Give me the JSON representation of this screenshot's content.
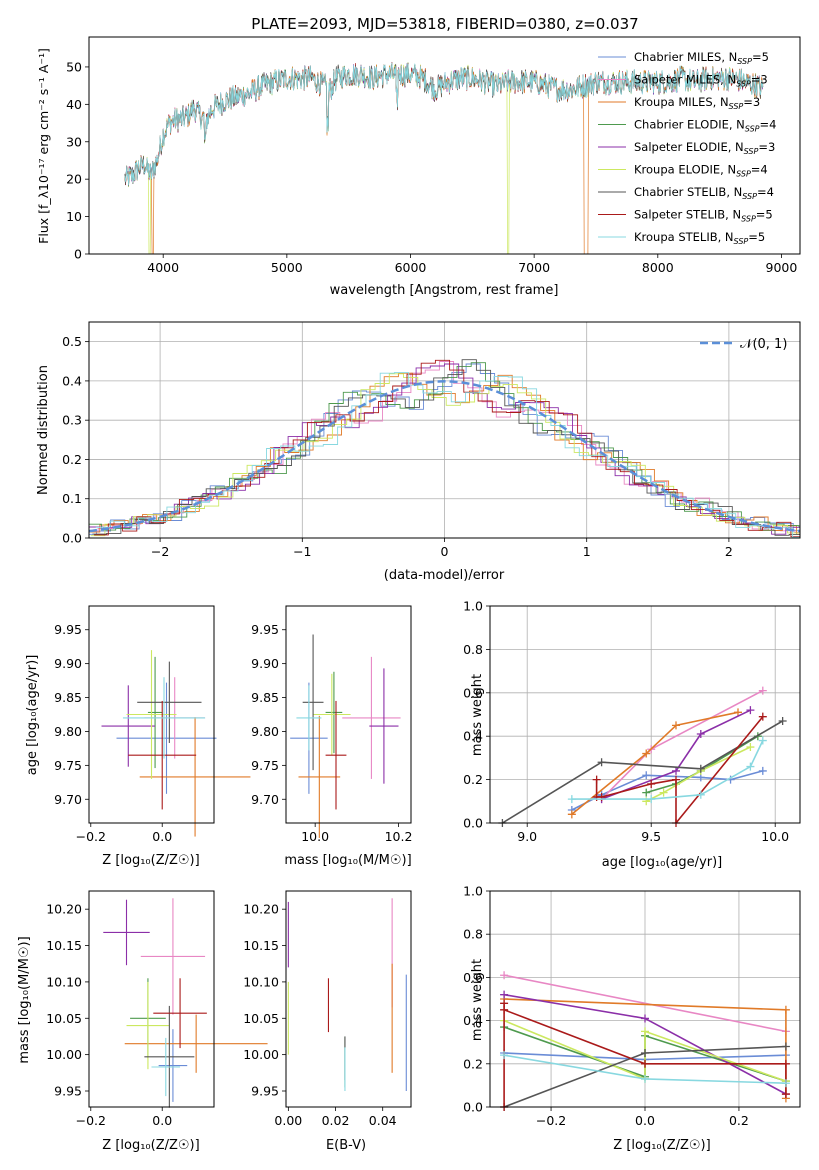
{
  "title": "PLATE=2093, MJD=53818, FIBERID=0380, z=0.037",
  "colors": [
    "#6a8cd6",
    "#e887c4",
    "#e07a28",
    "#4e9a4e",
    "#8b2fa8",
    "#cce860",
    "#555555",
    "#aa1a1a",
    "#88d8e0"
  ],
  "chart_data": [
    {
      "id": "spectrum",
      "type": "line",
      "xlabel": "wavelength [Angstrom, rest frame]",
      "ylabel": "Flux [f_λ10⁻¹⁷ erg cm⁻² s⁻¹ A⁻¹]",
      "xlim": [
        3400,
        9150
      ],
      "ylim": [
        0,
        58
      ],
      "xticks": [
        4000,
        5000,
        6000,
        7000,
        8000,
        9000
      ],
      "yticks": [
        0,
        10,
        20,
        30,
        40,
        50
      ],
      "legend_position": "top-right",
      "legend": [
        "Chabrier MILES, N_SSP=5",
        "Salpeter MILES, N_SSP=3",
        "Kroupa MILES, N_SSP=3",
        "Chabrier ELODIE, N_SSP=4",
        "Salpeter ELODIE, N_SSP=3",
        "Kroupa ELODIE, N_SSP=4",
        "Chabrier STELIB, N_SSP=4",
        "Salpeter STELIB, N_SSP=5",
        "Kroupa STELIB, N_SSP=5"
      ],
      "envelope": {
        "x": [
          3690,
          3750,
          3800,
          3850,
          3900,
          3950,
          4000,
          4050,
          4100,
          4150,
          4200,
          4250,
          4300,
          4350,
          4400,
          4500,
          4600,
          4700,
          4800,
          4900,
          5000,
          5100,
          5200,
          5300,
          5350,
          5400,
          5500,
          5600,
          5700,
          5800,
          5900,
          6000,
          6100,
          6200,
          6300,
          6400,
          6500,
          6600,
          6700,
          6800,
          6900,
          7000,
          7100,
          7200,
          7300,
          7400,
          7500,
          7600,
          7700,
          7800,
          7900,
          8000,
          8100,
          8200,
          8300,
          8400,
          8500,
          8600,
          8700,
          8800,
          8850
        ],
        "y": [
          20,
          21,
          23,
          24,
          21,
          25,
          32,
          35,
          36,
          36,
          37,
          39,
          37,
          36,
          39,
          41,
          42,
          43,
          45,
          46,
          47,
          47,
          47,
          45,
          44,
          47,
          48,
          48,
          47,
          48,
          48,
          48,
          47,
          44,
          46,
          47,
          47,
          46,
          45,
          46,
          46,
          46,
          45,
          44,
          44,
          45,
          46,
          46,
          46,
          46,
          46,
          46,
          46,
          47,
          46,
          47,
          47,
          47,
          46,
          45,
          44
        ]
      },
      "drops": [
        {
          "series": "Kroupa ELODIE, N_SSP=4",
          "x": 3890
        },
        {
          "series": "Kroupa MILES, N_SSP=3",
          "x": 3915
        },
        {
          "series": "Kroupa ELODIE, N_SSP=4",
          "x": 6790
        },
        {
          "series": "Kroupa MILES, N_SSP=3",
          "x": 7410
        }
      ]
    },
    {
      "id": "residuals",
      "type": "line",
      "xlabel": "(data-model)/error",
      "ylabel": "Normed distribution",
      "xlim": [
        -2.5,
        2.5
      ],
      "ylim": [
        0,
        0.55
      ],
      "xticks": [
        -2,
        -1,
        0,
        1,
        2
      ],
      "yticks": [
        0.0,
        0.1,
        0.2,
        0.3,
        0.4,
        0.5
      ],
      "grid": true,
      "legend_position": "top-right",
      "reference_label": "𝒩(0, 1)",
      "bin_width": 0.1
    },
    {
      "id": "age-vs-Z",
      "type": "scatter",
      "xlabel": "Z [log₁₀(Z/Z☉)]",
      "ylabel": "age  [log₁₀(age/yr)]",
      "xlim": [
        -0.205,
        0.145
      ],
      "ylim": [
        9.665,
        9.985
      ],
      "xticks": [
        -0.2,
        0.0
      ],
      "xticklabels": [
        "−0.2",
        "0.0"
      ],
      "yticks": [
        9.7,
        9.75,
        9.8,
        9.85,
        9.9,
        9.95
      ],
      "points": [
        {
          "x": 0.012,
          "y": 9.79,
          "xerr": 0.14,
          "yerr": 0.082
        },
        {
          "x": 0.035,
          "y": 9.82,
          "xerr": 0.085,
          "yerr": 0.06
        },
        {
          "x": 0.092,
          "y": 9.733,
          "xerr": 0.155,
          "yerr": 0.088
        },
        {
          "x": -0.02,
          "y": 9.828,
          "xerr": 0.02,
          "yerr": 0.082
        },
        {
          "x": -0.095,
          "y": 9.808,
          "xerr": 0.075,
          "yerr": 0.06
        },
        {
          "x": -0.03,
          "y": 9.825,
          "xerr": 0.07,
          "yerr": 0.095
        },
        {
          "x": 0.02,
          "y": 9.843,
          "xerr": 0.09,
          "yerr": 0.06
        },
        {
          "x": 0.0,
          "y": 9.765,
          "xerr": 0.095,
          "yerr": 0.08
        },
        {
          "x": 0.005,
          "y": 9.82,
          "xerr": 0.115,
          "yerr": 0.06
        }
      ]
    },
    {
      "id": "age-vs-mass",
      "type": "scatter",
      "xlabel": "mass [log₁₀(M/M☉)]",
      "xlim": [
        9.93,
        10.23
      ],
      "ylim": [
        9.665,
        9.985
      ],
      "xticks": [
        10.0,
        10.2
      ],
      "xticklabels": [
        "10.0",
        "10.2"
      ],
      "yticks": [
        9.7,
        9.75,
        9.8,
        9.85,
        9.9,
        9.95
      ],
      "points": [
        {
          "x": 9.985,
          "y": 9.79,
          "xerr": 0.045,
          "yerr": 0.082
        },
        {
          "x": 10.135,
          "y": 9.82,
          "xerr": 0.07,
          "yerr": 0.09
        },
        {
          "x": 10.01,
          "y": 9.733,
          "xerr": 0.05,
          "yerr": 0.09
        },
        {
          "x": 10.045,
          "y": 9.828,
          "xerr": 0.02,
          "yerr": 0.06
        },
        {
          "x": 10.165,
          "y": 9.808,
          "xerr": 0.035,
          "yerr": 0.085
        },
        {
          "x": 10.04,
          "y": 9.825,
          "xerr": 0.045,
          "yerr": 0.06
        },
        {
          "x": 9.995,
          "y": 9.843,
          "xerr": 0.025,
          "yerr": 0.1
        },
        {
          "x": 10.05,
          "y": 9.765,
          "xerr": 0.025,
          "yerr": 0.08
        },
        {
          "x": 9.985,
          "y": 9.82,
          "xerr": 0.03,
          "yerr": 0.048
        }
      ]
    },
    {
      "id": "weight-vs-age",
      "type": "line",
      "xlabel": "age  [log₁₀(age/yr)]",
      "ylabel": "mass weight",
      "xlim": [
        8.85,
        10.1
      ],
      "ylim": [
        0,
        1
      ],
      "xticks": [
        9.0,
        9.5,
        10.0
      ],
      "xticklabels": [
        "9.0",
        "9.5",
        "10.0"
      ],
      "yticks": [
        0.0,
        0.2,
        0.4,
        0.6,
        0.8,
        1.0
      ],
      "yticklabels": [
        "0.0",
        "0.2",
        "0.4",
        "0.6",
        "0.8",
        "1.0"
      ],
      "grid": true,
      "series": [
        {
          "x": [
            9.18,
            9.3,
            9.48,
            9.7,
            9.82,
            9.95
          ],
          "y": [
            0.06,
            0.13,
            0.22,
            0.21,
            0.2,
            0.24
          ]
        },
        {
          "x": [
            9.3,
            9.5,
            9.95
          ],
          "y": [
            0.11,
            0.34,
            0.61
          ]
        },
        {
          "x": [
            9.18,
            9.48,
            9.6,
            9.85
          ],
          "y": [
            0.04,
            0.32,
            0.45,
            0.51
          ]
        },
        {
          "x": [
            9.48,
            9.6,
            9.7,
            9.93
          ],
          "y": [
            0.14,
            0.18,
            0.24,
            0.4
          ]
        },
        {
          "x": [
            9.3,
            9.6,
            9.7,
            9.9
          ],
          "y": [
            0.11,
            0.24,
            0.41,
            0.52
          ]
        },
        {
          "x": [
            9.48,
            9.55,
            9.7,
            9.9
          ],
          "y": [
            0.1,
            0.14,
            0.24,
            0.35
          ]
        },
        {
          "x": [
            8.9,
            9.3,
            9.7,
            10.03
          ],
          "y": [
            0.0,
            0.28,
            0.25,
            0.47
          ]
        },
        {
          "x": [
            9.28,
            9.28,
            9.3,
            9.5,
            9.6,
            9.6,
            9.95
          ],
          "y": [
            0.2,
            0.12,
            0.12,
            0.18,
            0.2,
            0.0,
            0.49
          ]
        },
        {
          "x": [
            9.18,
            9.5,
            9.7,
            9.9,
            9.95
          ],
          "y": [
            0.11,
            0.11,
            0.13,
            0.26,
            0.38
          ]
        }
      ]
    },
    {
      "id": "mass-vs-Z",
      "type": "scatter",
      "xlabel": "Z [log₁₀(Z/Z☉)]",
      "ylabel": "mass [log₁₀(M/M☉)]",
      "xlim": [
        -0.205,
        0.145
      ],
      "ylim": [
        9.928,
        10.225
      ],
      "xticks": [
        -0.2,
        0.0
      ],
      "xticklabels": [
        "−0.2",
        "0.0"
      ],
      "yticks": [
        9.95,
        10.0,
        10.05,
        10.1,
        10.15,
        10.2
      ],
      "points": [
        {
          "x": 0.03,
          "y": 9.985,
          "xerr": 0.04,
          "yerr": 0.05
        },
        {
          "x": 0.03,
          "y": 10.135,
          "xerr": 0.09,
          "yerr": 0.08
        },
        {
          "x": 0.095,
          "y": 10.015,
          "xerr": 0.2,
          "yerr": 0.04
        },
        {
          "x": -0.04,
          "y": 10.05,
          "xerr": 0.05,
          "yerr": 0.055
        },
        {
          "x": -0.1,
          "y": 10.168,
          "xerr": 0.065,
          "yerr": 0.045
        },
        {
          "x": -0.04,
          "y": 10.04,
          "xerr": 0.06,
          "yerr": 0.06
        },
        {
          "x": 0.02,
          "y": 9.997,
          "xerr": 0.07,
          "yerr": 0.07
        },
        {
          "x": 0.05,
          "y": 10.057,
          "xerr": 0.075,
          "yerr": 0.048
        },
        {
          "x": 0.01,
          "y": 9.983,
          "xerr": 0.04,
          "yerr": 0.04
        }
      ]
    },
    {
      "id": "mass-vs-EBV",
      "type": "scatter",
      "xlabel": "E(B-V)",
      "xlim": [
        -0.001,
        0.052
      ],
      "ylim": [
        9.928,
        10.225
      ],
      "xticks": [
        0.0,
        0.02,
        0.04
      ],
      "xticklabels": [
        "0.00",
        "0.02",
        "0.04"
      ],
      "yticks": [
        9.95,
        10.0,
        10.05,
        10.1,
        10.15,
        10.2
      ],
      "points": [
        {
          "x": 0.05,
          "y": 10.03,
          "xerr": 0,
          "yerr": 0.08
        },
        {
          "x": 0.044,
          "y": 10.14,
          "xerr": 0,
          "yerr": 0.075
        },
        {
          "x": 0.044,
          "y": 10.05,
          "xerr": 0,
          "yerr": 0.075
        },
        {
          "x": 0.024,
          "y": 9.99,
          "xerr": 0,
          "yerr": 0.035
        },
        {
          "x": 0.0,
          "y": 10.165,
          "xerr": 0,
          "yerr": 0.045
        },
        {
          "x": 0.0,
          "y": 10.05,
          "xerr": 0,
          "yerr": 0.05
        },
        {
          "x": 0.024,
          "y": 9.995,
          "xerr": 0,
          "yerr": 0.03
        },
        {
          "x": 0.017,
          "y": 10.068,
          "xerr": 0,
          "yerr": 0.037
        },
        {
          "x": 0.024,
          "y": 9.98,
          "xerr": 0,
          "yerr": 0.03
        }
      ]
    },
    {
      "id": "weight-vs-Z",
      "type": "line",
      "xlabel": "Z [log₁₀(Z/Z☉)]",
      "ylabel": "mass weight",
      "xlim": [
        -0.33,
        0.33
      ],
      "ylim": [
        0,
        1
      ],
      "xticks": [
        -0.2,
        0.0,
        0.2
      ],
      "xticklabels": [
        "−0.2",
        "0.0",
        "0.2"
      ],
      "yticks": [
        0.0,
        0.2,
        0.4,
        0.6,
        0.8,
        1.0
      ],
      "yticklabels": [
        "0.0",
        "0.2",
        "0.4",
        "0.6",
        "0.8",
        "1.0"
      ],
      "grid": true,
      "series": [
        {
          "x": [
            -0.3,
            0.0,
            0.3
          ],
          "y": [
            0.25,
            0.22,
            0.24
          ]
        },
        {
          "x": [
            -0.3,
            0.3
          ],
          "y": [
            0.61,
            0.35
          ]
        },
        {
          "x": [
            -0.3,
            0.3,
            0.3
          ],
          "y": [
            0.5,
            0.45,
            0.04
          ]
        },
        {
          "x": [
            -0.3,
            0.0,
            0.0,
            0.3
          ],
          "y": [
            0.37,
            0.14,
            0.33,
            0.12
          ]
        },
        {
          "x": [
            -0.3,
            0.0,
            0.3
          ],
          "y": [
            0.52,
            0.41,
            0.06
          ]
        },
        {
          "x": [
            -0.3,
            0.0,
            0.0,
            0.3
          ],
          "y": [
            0.4,
            0.13,
            0.35,
            0.12
          ]
        },
        {
          "x": [
            -0.3,
            0.0,
            0.3
          ],
          "y": [
            0.0,
            0.25,
            0.28
          ]
        },
        {
          "x": [
            -0.3,
            -0.3,
            -0.3,
            0.0,
            0.3,
            0.3
          ],
          "y": [
            0.48,
            0.0,
            0.45,
            0.2,
            0.2,
            0.06
          ]
        },
        {
          "x": [
            -0.3,
            0.0,
            0.3
          ],
          "y": [
            0.24,
            0.13,
            0.11
          ]
        }
      ]
    }
  ]
}
